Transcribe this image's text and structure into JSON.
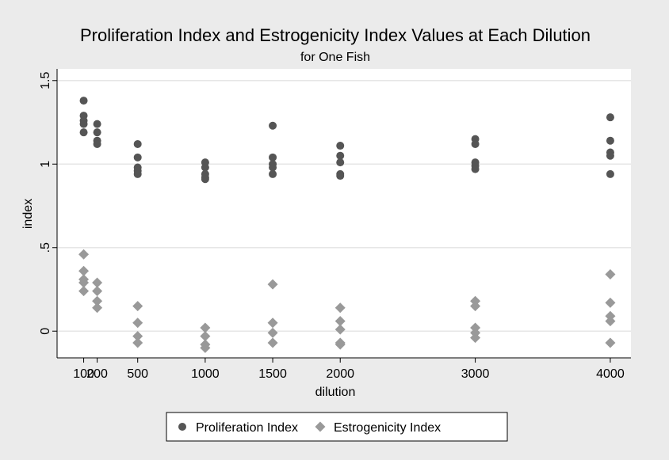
{
  "chart_data": {
    "type": "scatter",
    "title": "Proliferation Index and Estrogenicity Index Values at Each Dilution",
    "subtitle": "for One Fish",
    "x_label": "dilution",
    "y_label": "index",
    "xlim": [
      -97,
      4153
    ],
    "ylim": [
      -0.16,
      1.57
    ],
    "xticks": [
      100,
      200,
      500,
      1000,
      1500,
      2000,
      3000,
      4000
    ],
    "yticks": [
      0,
      {
        "value": 0.5,
        "label": ".5"
      },
      1,
      1.5
    ],
    "grid": true,
    "series": [
      {
        "name": "Proliferation Index",
        "color": "#555555",
        "marker": "circle",
        "x": [
          100,
          100,
          100,
          100,
          100,
          200,
          200,
          200,
          200,
          500,
          500,
          500,
          500,
          500,
          1000,
          1000,
          1000,
          1000,
          1000,
          1500,
          1500,
          1500,
          1500,
          1500,
          2000,
          2000,
          2000,
          2000,
          2000,
          3000,
          3000,
          3000,
          3000,
          3000,
          4000,
          4000,
          4000,
          4000,
          4000
        ],
        "values": [
          1.38,
          1.29,
          1.26,
          1.24,
          1.19,
          1.24,
          1.19,
          1.14,
          1.12,
          1.12,
          1.04,
          0.98,
          0.96,
          0.94,
          1.01,
          0.98,
          0.94,
          0.92,
          0.91,
          1.23,
          1.04,
          1.0,
          0.98,
          0.94,
          1.11,
          1.05,
          1.01,
          0.94,
          0.93,
          1.15,
          1.12,
          1.01,
          0.99,
          0.97,
          1.28,
          1.14,
          1.07,
          1.05,
          0.94
        ]
      },
      {
        "name": "Estrogenicity Index",
        "color": "#999999",
        "marker": "diamond",
        "x": [
          100,
          100,
          100,
          100,
          100,
          200,
          200,
          200,
          200,
          500,
          500,
          500,
          500,
          1000,
          1000,
          1000,
          1000,
          1500,
          1500,
          1500,
          1500,
          2000,
          2000,
          2000,
          2000,
          2000,
          3000,
          3000,
          3000,
          3000,
          3000,
          4000,
          4000,
          4000,
          4000,
          4000
        ],
        "values": [
          0.46,
          0.36,
          0.31,
          0.29,
          0.24,
          0.29,
          0.24,
          0.18,
          0.14,
          0.15,
          0.05,
          -0.03,
          -0.07,
          0.02,
          -0.03,
          -0.08,
          -0.1,
          0.28,
          0.05,
          -0.01,
          -0.07,
          0.14,
          0.06,
          0.01,
          -0.07,
          -0.08,
          0.18,
          0.15,
          0.02,
          -0.01,
          -0.04,
          0.34,
          0.17,
          0.09,
          0.06,
          -0.07
        ]
      }
    ]
  }
}
